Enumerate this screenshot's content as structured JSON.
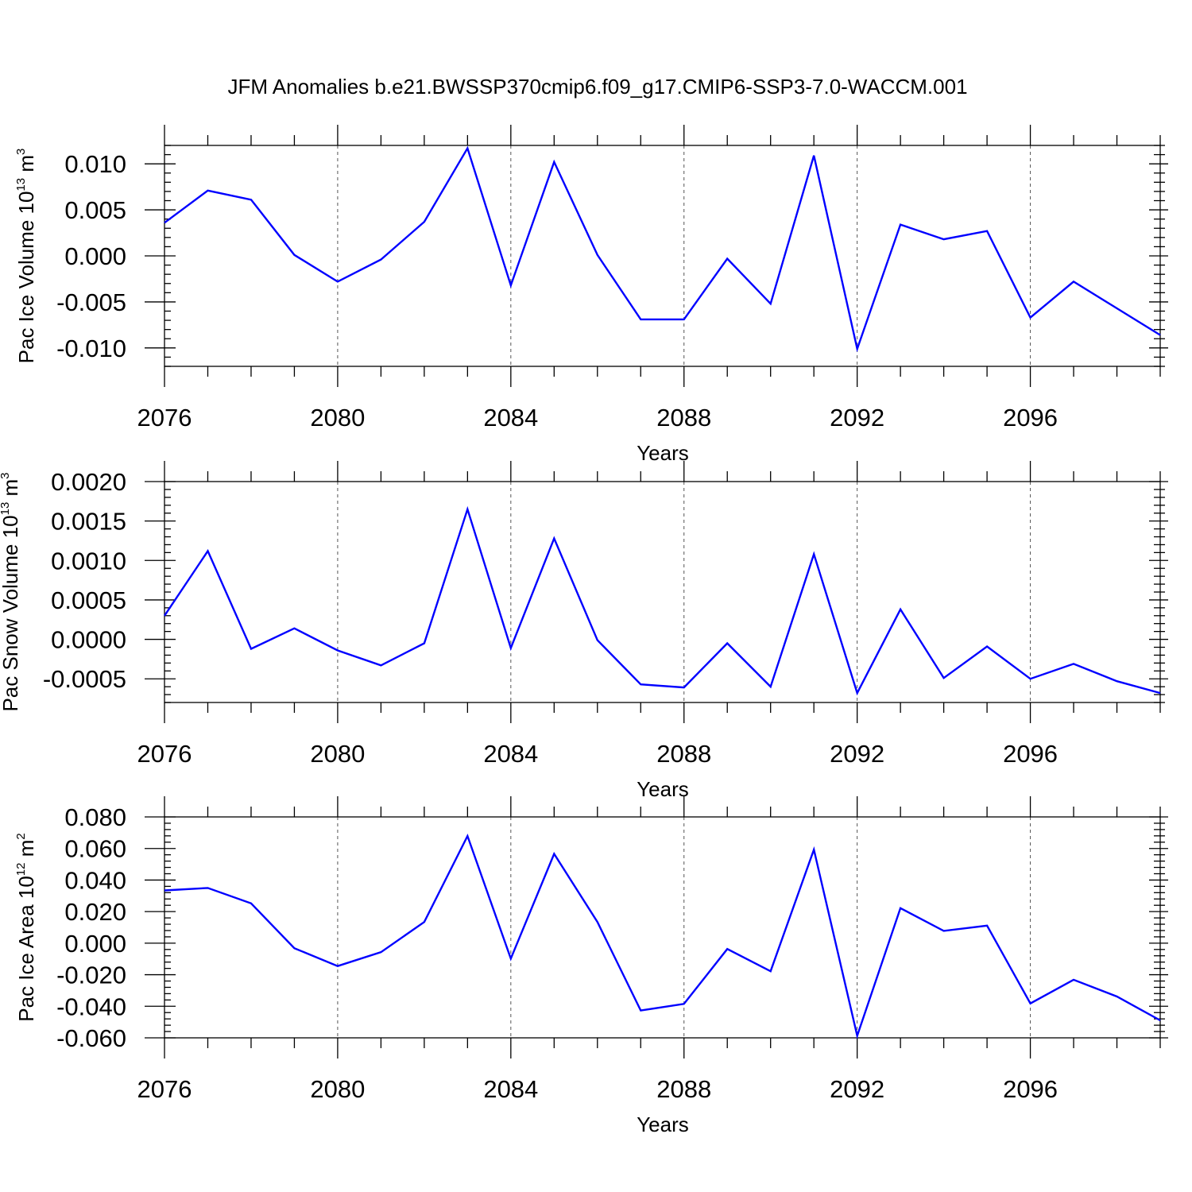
{
  "title": "JFM Anomalies b.e21.BWSSP370cmip6.f09_g17.CMIP6-SSP3-7.0-WACCM.001",
  "colors": {
    "line": "#0000ff",
    "axes": "#000000",
    "grid": "#555555"
  },
  "chart_data": [
    {
      "type": "line",
      "xlabel": "Years",
      "ylabel": {
        "prefix": "Pac Ice Volume 10",
        "exp1": "13",
        "mid": " m",
        "exp2": "3"
      },
      "xlim": [
        2076,
        2099
      ],
      "ylim": [
        -0.012,
        0.012
      ],
      "x_ticks": [
        2076,
        2080,
        2084,
        2088,
        2092,
        2096
      ],
      "y_ticks": [
        -0.01,
        -0.005,
        0.0,
        0.005,
        0.01
      ],
      "y_tick_labels": [
        "-0.010",
        "-0.005",
        "0.000",
        "0.005",
        "0.010"
      ],
      "grid_x": [
        2080,
        2084,
        2088,
        2092,
        2096
      ],
      "x": [
        2076,
        2077,
        2078,
        2079,
        2080,
        2081,
        2082,
        2083,
        2084,
        2085,
        2086,
        2087,
        2088,
        2089,
        2090,
        2091,
        2092,
        2093,
        2094,
        2095,
        2096,
        2097,
        2098,
        2099
      ],
      "values": [
        0.0036,
        0.0071,
        0.0061,
        0.0001,
        -0.0028,
        -0.0004,
        0.0037,
        0.0117,
        -0.0032,
        0.0102,
        0.0001,
        -0.0069,
        -0.0069,
        -0.0003,
        -0.0052,
        0.0109,
        -0.0101,
        0.0034,
        0.0018,
        0.0027,
        -0.0067,
        -0.0028,
        -0.0057,
        -0.0086
      ]
    },
    {
      "type": "line",
      "xlabel": "Years",
      "ylabel": {
        "prefix": "Pac Snow Volume 10",
        "exp1": "13",
        "mid": " m",
        "exp2": "3"
      },
      "xlim": [
        2076,
        2099
      ],
      "ylim": [
        -0.0008,
        0.002
      ],
      "x_ticks": [
        2076,
        2080,
        2084,
        2088,
        2092,
        2096
      ],
      "y_ticks": [
        -0.0005,
        0.0,
        0.0005,
        0.001,
        0.0015,
        0.002
      ],
      "y_tick_labels": [
        "-0.0005",
        "0.0000",
        "0.0005",
        "0.0010",
        "0.0015",
        "0.0020"
      ],
      "grid_x": [
        2080,
        2084,
        2088,
        2092,
        2096
      ],
      "x": [
        2076,
        2077,
        2078,
        2079,
        2080,
        2081,
        2082,
        2083,
        2084,
        2085,
        2086,
        2087,
        2088,
        2089,
        2090,
        2091,
        2092,
        2093,
        2094,
        2095,
        2096,
        2097,
        2098,
        2099
      ],
      "values": [
        0.0003,
        0.00112,
        -0.00012,
        0.00014,
        -0.00014,
        -0.00033,
        -5e-05,
        0.00165,
        -0.00011,
        0.00128,
        -1e-05,
        -0.00057,
        -0.00061,
        -5e-05,
        -0.0006,
        0.00108,
        -0.00068,
        0.00038,
        -0.00049,
        -9e-05,
        -0.0005,
        -0.00031,
        -0.00053,
        -0.00068
      ]
    },
    {
      "type": "line",
      "xlabel": "Years",
      "ylabel": {
        "prefix": "Pac Ice Area 10",
        "exp1": "12",
        "mid": " m",
        "exp2": "2"
      },
      "xlim": [
        2076,
        2099
      ],
      "ylim": [
        -0.06,
        0.08
      ],
      "x_ticks": [
        2076,
        2080,
        2084,
        2088,
        2092,
        2096
      ],
      "y_ticks": [
        -0.06,
        -0.04,
        -0.02,
        0.0,
        0.02,
        0.04,
        0.06,
        0.08
      ],
      "y_tick_labels": [
        "-0.060",
        "-0.040",
        "-0.020",
        "0.000",
        "0.020",
        "0.040",
        "0.060",
        "0.080"
      ],
      "grid_x": [
        2080,
        2084,
        2088,
        2092,
        2096
      ],
      "x": [
        2076,
        2077,
        2078,
        2079,
        2080,
        2081,
        2082,
        2083,
        2084,
        2085,
        2086,
        2087,
        2088,
        2089,
        2090,
        2091,
        2092,
        2093,
        2094,
        2095,
        2096,
        2097,
        2098,
        2099
      ],
      "values": [
        0.0334,
        0.035,
        0.0252,
        -0.0032,
        -0.0145,
        -0.0057,
        0.0134,
        0.0679,
        -0.0098,
        0.0566,
        0.0134,
        -0.0427,
        -0.0385,
        -0.0037,
        -0.0178,
        0.0593,
        -0.0587,
        0.0222,
        0.0078,
        0.0111,
        -0.0382,
        -0.0232,
        -0.0338,
        -0.0489
      ]
    }
  ]
}
